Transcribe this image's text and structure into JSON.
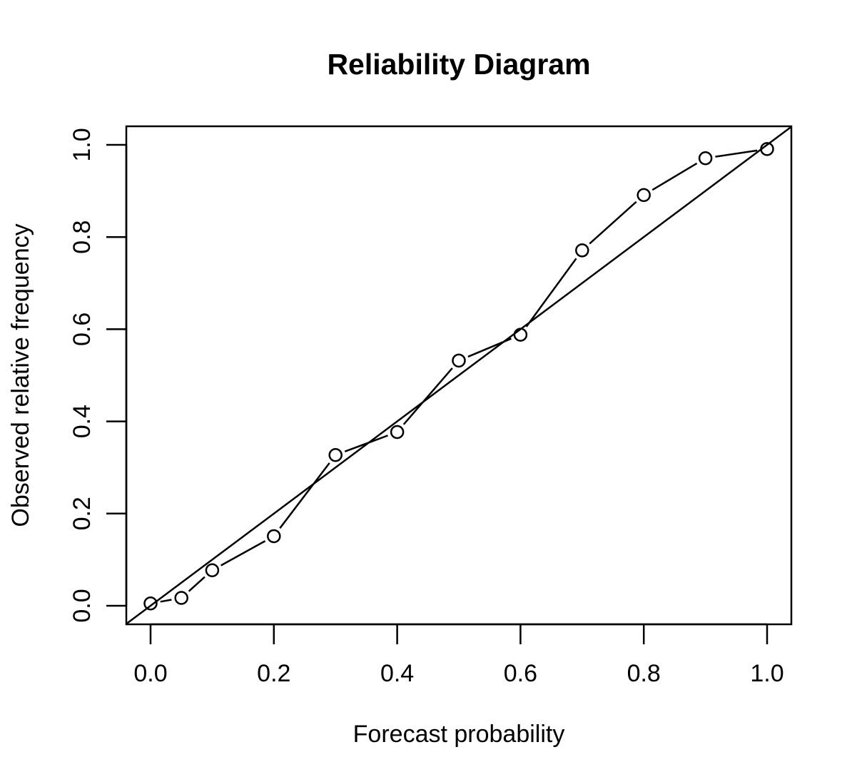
{
  "chart_data": {
    "type": "line",
    "title": "Reliability Diagram",
    "xlabel": "Forecast probability",
    "ylabel": "Observed relative frequency",
    "xlim": [
      0,
      1
    ],
    "ylim": [
      0,
      1
    ],
    "x_ticks": [
      "0.0",
      "0.2",
      "0.4",
      "0.6",
      "0.8",
      "1.0"
    ],
    "y_ticks": [
      "0.0",
      "0.2",
      "0.4",
      "0.6",
      "0.8",
      "1.0"
    ],
    "grid": false,
    "legend": "none",
    "reference_line": {
      "slope": 1,
      "intercept": 0
    },
    "series": [
      {
        "style": "line-with-open-circles",
        "x": [
          0.0,
          0.05,
          0.1,
          0.2,
          0.3,
          0.4,
          0.5,
          0.6,
          0.7,
          0.8,
          0.9,
          1.0
        ],
        "y": [
          0.005,
          0.017,
          0.077,
          0.151,
          0.327,
          0.377,
          0.532,
          0.588,
          0.771,
          0.891,
          0.971,
          0.991
        ]
      }
    ],
    "colors": {
      "line": "#000000",
      "background": "#ffffff"
    }
  }
}
